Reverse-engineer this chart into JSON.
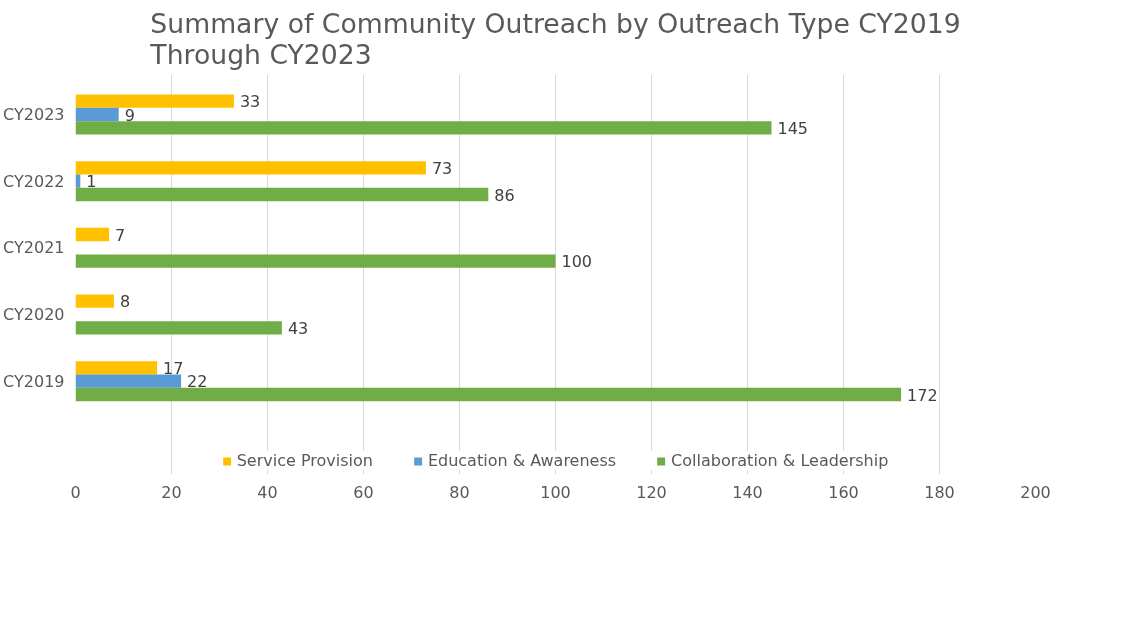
{
  "chart_data": {
    "type": "bar",
    "orientation": "horizontal",
    "title": "Summary of Community Outreach by Outreach Type CY2019 Through CY2023",
    "categories": [
      "CY2023",
      "CY2022",
      "CY2021",
      "CY2020",
      "CY2019"
    ],
    "series": [
      {
        "name": "Service Provision",
        "color": "#ffc000",
        "values": [
          33,
          73,
          7,
          8,
          17
        ]
      },
      {
        "name": "Education & Awareness",
        "color": "#5b9bd5",
        "values": [
          9,
          1,
          null,
          null,
          22
        ]
      },
      {
        "name": "Collaboration & Leadership",
        "color": "#70ad47",
        "values": [
          145,
          86,
          100,
          43,
          172
        ]
      }
    ],
    "xlim": [
      0,
      200
    ],
    "xticks": [
      0,
      20,
      40,
      60,
      80,
      100,
      120,
      140,
      160,
      180,
      200
    ],
    "grid": "x",
    "legend": "bottom",
    "data_labels": true
  }
}
